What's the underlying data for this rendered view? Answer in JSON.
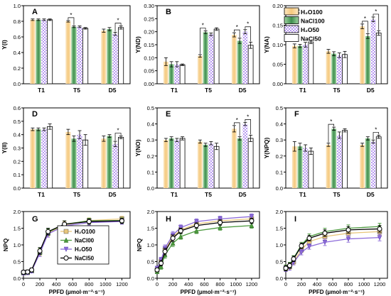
{
  "colors": {
    "H2O100": "#f7cf8c",
    "NaCl100": "#4fa060",
    "H2O50": "#b89af0",
    "NaCl50": "#ffffff",
    "line_H2O100": "#e8c77c",
    "line_NaCl100": "#4c9a3e",
    "line_H2O50": "#8c6ad9",
    "line_NaCl50": "#000000"
  },
  "legend_top": [
    "H₂O100",
    "NaCl100",
    "H₂O50",
    "NaCl50"
  ],
  "legend_npq": [
    "H₂O100",
    "NaCl00",
    "H₂O50",
    "NaCl50"
  ],
  "chart_data": [
    {
      "type": "bar",
      "panel": "A",
      "ylabel": "Y(I)",
      "ylim": [
        0,
        1.0
      ],
      "yticks": [
        "0.0",
        "0.2",
        "0.4",
        "0.6",
        "0.8",
        "1.0"
      ],
      "categories": [
        "T1",
        "T5",
        "D5"
      ],
      "series": [
        {
          "name": "H₂O100",
          "values": [
            0.82,
            0.8,
            0.68
          ],
          "err": [
            0.01,
            0.01,
            0.02
          ]
        },
        {
          "name": "NaCl100",
          "values": [
            0.82,
            0.73,
            0.7
          ],
          "err": [
            0.01,
            0.01,
            0.02
          ]
        },
        {
          "name": "H₂O50",
          "values": [
            0.82,
            0.73,
            0.64
          ],
          "err": [
            0.01,
            0.01,
            0.02
          ]
        },
        {
          "name": "NaCl50",
          "values": [
            0.82,
            0.71,
            0.72
          ],
          "err": [
            0.01,
            0.01,
            0.02
          ]
        }
      ],
      "sig": [
        [
          1,
          0,
          1
        ],
        [
          2,
          2,
          3
        ]
      ]
    },
    {
      "type": "bar",
      "panel": "B",
      "ylabel": "Y(ND)",
      "ylim": [
        0,
        0.3
      ],
      "yticks": [
        "0.00",
        "0.05",
        "0.10",
        "0.15",
        "0.20",
        "0.25",
        "0.30"
      ],
      "categories": [
        "T1",
        "T5",
        "D5"
      ],
      "series": [
        {
          "name": "H₂O100",
          "values": [
            0.085,
            0.107,
            0.188
          ],
          "err": [
            0.015,
            0.005,
            0.008
          ]
        },
        {
          "name": "NaCl100",
          "values": [
            0.075,
            0.198,
            0.165
          ],
          "err": [
            0.01,
            0.005,
            0.01
          ]
        },
        {
          "name": "H₂O50",
          "values": [
            0.075,
            0.19,
            0.2
          ],
          "err": [
            0.01,
            0.005,
            0.008
          ]
        },
        {
          "name": "NaCl50",
          "values": [
            0.073,
            0.21,
            0.148
          ],
          "err": [
            0.003,
            0.005,
            0.012
          ]
        }
      ],
      "sig": [
        [
          1,
          0,
          1
        ],
        [
          2,
          0,
          1
        ],
        [
          2,
          2,
          3
        ]
      ]
    },
    {
      "type": "bar",
      "panel": "C",
      "ylabel": "Y(NA)",
      "ylim": [
        0,
        0.2
      ],
      "yticks": [
        "0.00",
        "0.05",
        "0.10",
        "0.15",
        "0.20"
      ],
      "categories": [
        "T1",
        "T5",
        "D5"
      ],
      "series": [
        {
          "name": "H₂O100",
          "values": [
            0.097,
            0.083,
            0.147
          ],
          "err": [
            0.005,
            0.005,
            0.006
          ]
        },
        {
          "name": "NaCl100",
          "values": [
            0.097,
            0.077,
            0.122
          ],
          "err": [
            0.004,
            0.005,
            0.006
          ]
        },
        {
          "name": "H₂O50",
          "values": [
            0.1,
            0.073,
            0.165
          ],
          "err": [
            0.006,
            0.006,
            0.006
          ]
        },
        {
          "name": "NaCl50",
          "values": [
            0.107,
            0.075,
            0.13
          ],
          "err": [
            0.004,
            0.008,
            0.006
          ]
        }
      ],
      "sig": [
        [
          2,
          0,
          1
        ],
        [
          2,
          2,
          3
        ]
      ]
    },
    {
      "type": "bar",
      "panel": "D",
      "ylabel": "Y(II)",
      "ylim": [
        0,
        0.6
      ],
      "yticks": [
        "0.0",
        "0.1",
        "0.2",
        "0.3",
        "0.4",
        "0.5",
        "0.6"
      ],
      "categories": [
        "T1",
        "T5",
        "D5"
      ],
      "series": [
        {
          "name": "H₂O100",
          "values": [
            0.44,
            0.42,
            0.37
          ],
          "err": [
            0.01,
            0.02,
            0.02
          ]
        },
        {
          "name": "NaCl100",
          "values": [
            0.44,
            0.37,
            0.39
          ],
          "err": [
            0.01,
            0.02,
            0.01
          ]
        },
        {
          "name": "H₂O50",
          "values": [
            0.44,
            0.4,
            0.33
          ],
          "err": [
            0.01,
            0.03,
            0.02
          ]
        },
        {
          "name": "NaCl50",
          "values": [
            0.46,
            0.36,
            0.38
          ],
          "err": [
            0.02,
            0.04,
            0.01
          ]
        }
      ],
      "sig": [
        [
          2,
          2,
          3
        ]
      ]
    },
    {
      "type": "bar",
      "panel": "E",
      "ylabel": "Y(NO)",
      "ylim": [
        0,
        0.5
      ],
      "yticks": [
        "0.0",
        "0.1",
        "0.2",
        "0.3",
        "0.4",
        "0.5"
      ],
      "categories": [
        "T1",
        "T5",
        "D5"
      ],
      "series": [
        {
          "name": "H₂O100",
          "values": [
            0.3,
            0.29,
            0.37
          ],
          "err": [
            0.01,
            0.01,
            0.02
          ]
        },
        {
          "name": "NaCl100",
          "values": [
            0.31,
            0.27,
            0.31
          ],
          "err": [
            0.01,
            0.01,
            0.01
          ]
        },
        {
          "name": "H₂O50",
          "values": [
            0.3,
            0.28,
            0.4
          ],
          "err": [
            0.01,
            0.01,
            0.01
          ]
        },
        {
          "name": "NaCl50",
          "values": [
            0.31,
            0.26,
            0.31
          ],
          "err": [
            0.01,
            0.02,
            0.02
          ]
        }
      ],
      "sig": [
        [
          2,
          0,
          1
        ],
        [
          2,
          2,
          3
        ]
      ]
    },
    {
      "type": "bar",
      "panel": "F",
      "ylabel": "Y(NPQ)",
      "ylim": [
        0,
        0.5
      ],
      "yticks": [
        "0.0",
        "0.1",
        "0.2",
        "0.3",
        "0.4",
        "0.5"
      ],
      "categories": [
        "T1",
        "T5",
        "D5"
      ],
      "series": [
        {
          "name": "H₂O100",
          "values": [
            0.26,
            0.27,
            0.27
          ],
          "err": [
            0.03,
            0.01,
            0.01
          ]
        },
        {
          "name": "NaCl100",
          "values": [
            0.26,
            0.37,
            0.31
          ],
          "err": [
            0.02,
            0.01,
            0.01
          ]
        },
        {
          "name": "H₂O50",
          "values": [
            0.25,
            0.33,
            0.29
          ],
          "err": [
            0.02,
            0.02,
            0.01
          ]
        },
        {
          "name": "NaCl50",
          "values": [
            0.23,
            0.36,
            0.32
          ],
          "err": [
            0.02,
            0.01,
            0.01
          ]
        }
      ],
      "sig": [
        [
          1,
          0,
          1
        ],
        [
          2,
          2,
          3
        ]
      ]
    },
    {
      "type": "line",
      "panel": "G",
      "ylabel": "NPQ",
      "xlabel": "PPFD (μmol·m⁻²·s⁻¹)",
      "xlim": [
        0,
        1300
      ],
      "ylim": [
        0,
        2.0
      ],
      "xticks": [
        "0",
        "200",
        "400",
        "600",
        "800",
        "1000",
        "1200"
      ],
      "yticks": [
        "0.0",
        "0.5",
        "1.0",
        "1.5",
        "2.0"
      ],
      "x": [
        0,
        50,
        100,
        200,
        300,
        500,
        800,
        1200
      ],
      "series": [
        {
          "name": "H₂O100",
          "values": [
            0.16,
            0.17,
            0.22,
            0.78,
            1.35,
            1.6,
            1.73,
            1.78
          ],
          "err": [
            0.06,
            0.06,
            0.06,
            0.1,
            0.1,
            0.1,
            0.08,
            0.08
          ]
        },
        {
          "name": "NaCl00",
          "values": [
            0.17,
            0.18,
            0.24,
            0.8,
            1.38,
            1.62,
            1.72,
            1.73
          ],
          "err": [
            0.06,
            0.06,
            0.06,
            0.1,
            0.1,
            0.1,
            0.08,
            0.08
          ]
        },
        {
          "name": "H₂O50",
          "values": [
            0.16,
            0.17,
            0.22,
            0.75,
            1.33,
            1.57,
            1.67,
            1.7
          ],
          "err": [
            0.06,
            0.06,
            0.06,
            0.1,
            0.1,
            0.1,
            0.08,
            0.08
          ]
        },
        {
          "name": "NaCl50",
          "values": [
            0.18,
            0.19,
            0.25,
            0.82,
            1.4,
            1.62,
            1.7,
            1.72
          ],
          "err": [
            0.06,
            0.06,
            0.06,
            0.1,
            0.1,
            0.1,
            0.08,
            0.08
          ]
        }
      ]
    },
    {
      "type": "line",
      "panel": "H",
      "ylabel": "NPQ",
      "xlabel": "PPFD (μmol·m⁻²·s⁻¹)",
      "xlim": [
        0,
        1300
      ],
      "ylim": [
        0,
        2.0
      ],
      "xticks": [
        "0",
        "200",
        "400",
        "600",
        "800",
        "1000",
        "1200"
      ],
      "yticks": [
        "0.0",
        "0.5",
        "1.0",
        "1.5",
        "2.0"
      ],
      "x": [
        0,
        50,
        100,
        200,
        300,
        500,
        800,
        1200
      ],
      "series": [
        {
          "name": "H₂O100",
          "values": [
            0.25,
            0.5,
            0.85,
            1.25,
            1.45,
            1.63,
            1.72,
            1.78
          ],
          "err": [
            0.05,
            0.08,
            0.1,
            0.1,
            0.08,
            0.08,
            0.08,
            0.08
          ]
        },
        {
          "name": "NaCl00",
          "values": [
            0.2,
            0.35,
            0.7,
            1.05,
            1.25,
            1.42,
            1.52,
            1.58
          ],
          "err": [
            0.05,
            0.08,
            0.1,
            0.1,
            0.08,
            0.08,
            0.08,
            0.08
          ]
        },
        {
          "name": "H₂O50",
          "values": [
            0.3,
            0.55,
            0.9,
            1.3,
            1.52,
            1.7,
            1.78,
            1.85
          ],
          "err": [
            0.05,
            0.08,
            0.1,
            0.1,
            0.08,
            0.08,
            0.08,
            0.08
          ]
        },
        {
          "name": "NaCl50",
          "values": [
            0.25,
            0.45,
            0.8,
            1.2,
            1.42,
            1.58,
            1.67,
            1.72
          ],
          "err": [
            0.05,
            0.08,
            0.1,
            0.1,
            0.08,
            0.08,
            0.08,
            0.08
          ]
        }
      ]
    },
    {
      "type": "line",
      "panel": "I",
      "ylabel": "",
      "xlabel": "PPFD (μmol·m⁻²·s⁻¹)",
      "xlim": [
        0,
        1300
      ],
      "ylim": [
        0,
        2.0
      ],
      "xticks": [
        "0",
        "200",
        "400",
        "600",
        "800",
        "1000",
        "1200"
      ],
      "yticks": [
        "0.0",
        "0.5",
        "1.0",
        "1.5",
        "2.0"
      ],
      "x": [
        0,
        50,
        100,
        200,
        300,
        500,
        800,
        1200
      ],
      "series": [
        {
          "name": "H₂O100",
          "values": [
            0.3,
            0.35,
            0.5,
            0.85,
            1.1,
            1.25,
            1.35,
            1.4
          ],
          "err": [
            0.08,
            0.08,
            0.08,
            0.08,
            0.08,
            0.1,
            0.1,
            0.1
          ]
        },
        {
          "name": "NaCl00",
          "values": [
            0.32,
            0.4,
            0.6,
            1.0,
            1.25,
            1.4,
            1.5,
            1.55
          ],
          "err": [
            0.08,
            0.08,
            0.08,
            0.08,
            0.08,
            0.1,
            0.1,
            0.1
          ]
        },
        {
          "name": "H₂O50",
          "values": [
            0.28,
            0.32,
            0.48,
            0.78,
            0.95,
            1.08,
            1.18,
            1.22
          ],
          "err": [
            0.08,
            0.08,
            0.08,
            0.08,
            0.08,
            0.1,
            0.1,
            0.1
          ]
        },
        {
          "name": "NaCl50",
          "values": [
            0.3,
            0.38,
            0.58,
            0.97,
            1.2,
            1.35,
            1.45,
            1.48
          ],
          "err": [
            0.08,
            0.08,
            0.08,
            0.08,
            0.08,
            0.1,
            0.1,
            0.1
          ]
        }
      ]
    }
  ]
}
